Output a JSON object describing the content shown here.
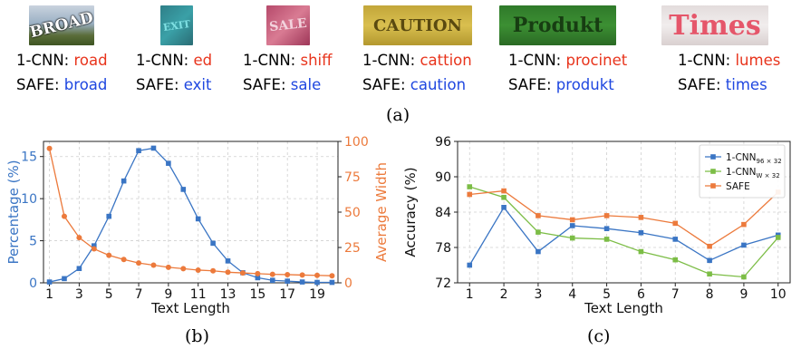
{
  "samples": [
    {
      "image_text": "BROAD",
      "baseline_label": "1-CNN:",
      "baseline_pred": "road",
      "safe_label": "SAFE:",
      "safe_pred": "broad"
    },
    {
      "image_text": "EXIT",
      "baseline_label": "1-CNN:",
      "baseline_pred": "ed",
      "safe_label": "SAFE:",
      "safe_pred": "exit"
    },
    {
      "image_text": "SALE",
      "baseline_label": "1-CNN:",
      "baseline_pred": "shiff",
      "safe_label": "SAFE:",
      "safe_pred": "sale"
    },
    {
      "image_text": "CAUTION",
      "baseline_label": "1-CNN:",
      "baseline_pred": "cattion",
      "safe_label": "SAFE:",
      "safe_pred": "caution"
    },
    {
      "image_text": "Produkt",
      "baseline_label": "1-CNN:",
      "baseline_pred": "procinet",
      "safe_label": "SAFE:",
      "safe_pred": "produkt"
    },
    {
      "image_text": "Times",
      "baseline_label": "1-CNN:",
      "baseline_pred": "lumes",
      "safe_label": "SAFE:",
      "safe_pred": "times"
    }
  ],
  "captions": {
    "a": "(a)",
    "b": "(b)",
    "c": "(c)"
  },
  "colors": {
    "wrong": "#e8341c",
    "right": "#1f47e0",
    "blue_series": "#3a75c4",
    "orange_series": "#ec7a3c",
    "green_series": "#7cbd46"
  },
  "chart_data": [
    {
      "type": "line",
      "xlabel": "Text Length",
      "ylabel": "Percentage (%)",
      "y2label": "Average Width",
      "x": [
        1,
        2,
        3,
        4,
        5,
        6,
        7,
        8,
        9,
        10,
        11,
        12,
        13,
        14,
        15,
        16,
        17,
        18,
        19,
        20
      ],
      "xticks": [
        "1",
        "3",
        "5",
        "7",
        "9",
        "11",
        "13",
        "15",
        "17",
        "19"
      ],
      "xlim": [
        0.6,
        20.4
      ],
      "ylim": [
        0,
        16.8
      ],
      "yticks": [
        "0",
        "5",
        "10",
        "15"
      ],
      "y2lim": [
        0,
        100
      ],
      "y2ticks": [
        "0",
        "25",
        "50",
        "75",
        "100"
      ],
      "grid": true,
      "series": [
        {
          "axis": "left",
          "marker": "square",
          "values": [
            0.1,
            0.5,
            1.7,
            4.4,
            7.9,
            12.1,
            15.7,
            16.0,
            14.2,
            11.1,
            7.6,
            4.7,
            2.6,
            1.2,
            0.6,
            0.3,
            0.2,
            0.1,
            0.05,
            0.05
          ]
        },
        {
          "axis": "right",
          "marker": "circle",
          "values": [
            95,
            47,
            32,
            24,
            19.5,
            16.5,
            14,
            12.5,
            11,
            10,
            9,
            8.5,
            7.5,
            7,
            6.5,
            6,
            5.8,
            5.5,
            5.3,
            5
          ]
        }
      ]
    },
    {
      "type": "line",
      "xlabel": "Text Length",
      "ylabel": "Accuracy (%)",
      "x": [
        1,
        2,
        3,
        4,
        5,
        6,
        7,
        8,
        9,
        10
      ],
      "xticks": [
        "1",
        "2",
        "3",
        "4",
        "5",
        "6",
        "7",
        "8",
        "9",
        "10"
      ],
      "xlim": [
        0.65,
        10.35
      ],
      "ylim": [
        72,
        96
      ],
      "yticks": [
        "72",
        "78",
        "84",
        "90",
        "96"
      ],
      "grid": true,
      "legend_position": "top-right",
      "series": [
        {
          "name": "1-CNN",
          "name_sub": "96 × 32",
          "marker": "square",
          "values": [
            75.0,
            84.8,
            77.3,
            81.7,
            81.2,
            80.5,
            79.4,
            75.8,
            78.4,
            80.1
          ]
        },
        {
          "name": "1-CNN",
          "name_sub": "W × 32",
          "marker": "square",
          "values": [
            88.3,
            86.5,
            80.6,
            79.6,
            79.4,
            77.3,
            75.9,
            73.5,
            73.0,
            79.7
          ]
        },
        {
          "name": "SAFE",
          "name_sub": "",
          "marker": "square",
          "values": [
            87.0,
            87.6,
            83.4,
            82.7,
            83.4,
            83.1,
            82.1,
            78.2,
            81.9,
            87.4
          ]
        }
      ]
    }
  ]
}
